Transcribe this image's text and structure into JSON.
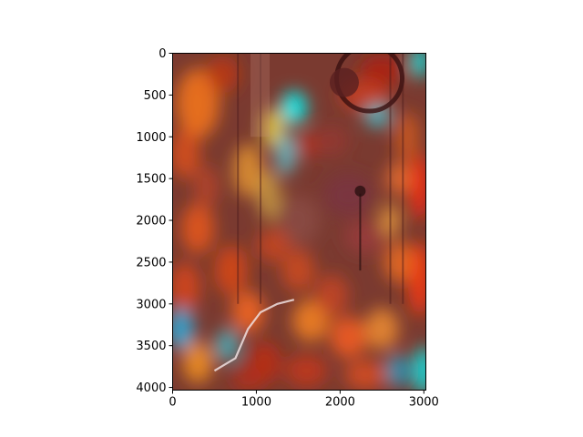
{
  "chart_data": {
    "type": "heatmap",
    "title": "",
    "xlabel": "",
    "ylabel": "",
    "xlim": [
      0,
      3024
    ],
    "ylim": [
      4032,
      0
    ],
    "y_inverted": true,
    "grid": false,
    "legend": "none",
    "x_ticks": [
      0,
      1000,
      2000,
      3000
    ],
    "y_ticks": [
      0,
      500,
      1000,
      1500,
      2000,
      2500,
      3000,
      3500,
      4000
    ],
    "x_tick_labels": [
      "0",
      "1000",
      "2000",
      "3000"
    ],
    "y_tick_labels": [
      "0",
      "500",
      "1000",
      "1500",
      "2000",
      "2500",
      "3000",
      "3500",
      "4000"
    ],
    "colormap": "jet",
    "colormap_colors": [
      "#00007f",
      "#0000ff",
      "#00ffff",
      "#ffff00",
      "#ff0000",
      "#7f0000"
    ],
    "background_image": "street-photo-overlay"
  }
}
